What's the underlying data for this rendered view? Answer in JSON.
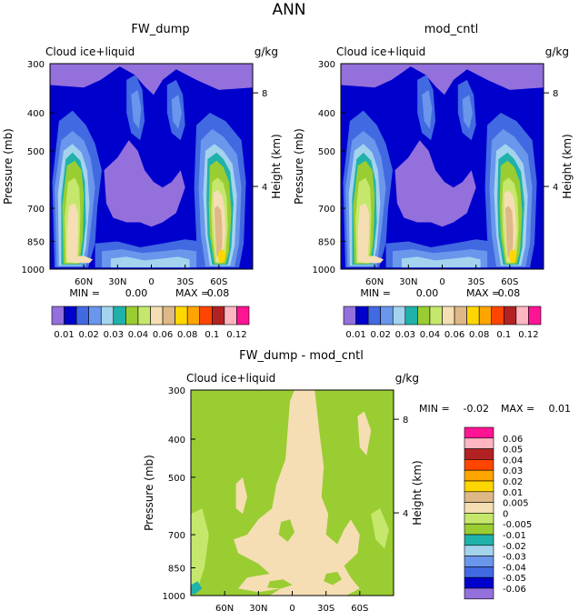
{
  "figure_title": "ANN",
  "chart_data": [
    {
      "type": "contour",
      "title": "FW_dump",
      "field_label": "Cloud ice+liquid",
      "units": "g/kg",
      "ylabel": "Pressure (mb)",
      "y2label": "Height (km)",
      "pressure_ticks": [
        "300",
        "400",
        "500",
        "700",
        "850",
        "1000"
      ],
      "height_ticks": [
        "8",
        "4"
      ],
      "lat_ticks": [
        "60N",
        "30N",
        "0",
        "30S",
        "60S"
      ],
      "min_label": "MIN =",
      "min_value": "0.00",
      "max_label": "MAX =",
      "max_value": "0.08",
      "levels": [
        0.01,
        0.02,
        0.03,
        0.04,
        0.06,
        0.08,
        0.1,
        0.12
      ],
      "colorbar_labels": [
        "0.01",
        "0.02",
        "0.03",
        "0.04",
        "0.06",
        "0.08",
        "0.1",
        "0.12"
      ]
    },
    {
      "type": "contour",
      "title": "mod_cntl",
      "field_label": "Cloud ice+liquid",
      "units": "g/kg",
      "ylabel": "Pressure (mb)",
      "y2label": "Height (km)",
      "pressure_ticks": [
        "300",
        "400",
        "500",
        "700",
        "850",
        "1000"
      ],
      "height_ticks": [
        "8",
        "4"
      ],
      "lat_ticks": [
        "60N",
        "30N",
        "0",
        "30S",
        "60S"
      ],
      "min_label": "MIN =",
      "min_value": "0.00",
      "max_label": "MAX =",
      "max_value": "0.08",
      "levels": [
        0.01,
        0.02,
        0.03,
        0.04,
        0.06,
        0.08,
        0.1,
        0.12
      ],
      "colorbar_labels": [
        "0.01",
        "0.02",
        "0.03",
        "0.04",
        "0.06",
        "0.08",
        "0.1",
        "0.12"
      ]
    },
    {
      "type": "contour",
      "title": "FW_dump - mod_cntl",
      "field_label": "Cloud ice+liquid",
      "units": "g/kg",
      "ylabel": "Pressure (mb)",
      "y2label": "Height (km)",
      "pressure_ticks": [
        "300",
        "400",
        "500",
        "700",
        "850",
        "1000"
      ],
      "height_ticks": [
        "8",
        "4"
      ],
      "lat_ticks": [
        "60N",
        "30N",
        "0",
        "30S",
        "60S"
      ],
      "min_label": "MIN =",
      "min_value": "-0.02",
      "max_label": "MAX =",
      "max_value": "0.01",
      "levels": [
        -0.06,
        -0.05,
        -0.04,
        -0.03,
        -0.02,
        -0.01,
        -0.005,
        0,
        0.005,
        0.01,
        0.02,
        0.03,
        0.04,
        0.05,
        0.06
      ],
      "colorbar_labels": [
        "0.06",
        "0.05",
        "0.04",
        "0.03",
        "0.02",
        "0.01",
        "0.005",
        "0",
        "-0.005",
        "-0.01",
        "-0.02",
        "-0.03",
        "-0.04",
        "-0.05",
        "-0.06"
      ]
    }
  ],
  "colors": {
    "abs_scale": [
      "#9370db",
      "#0000cd",
      "#4169e1",
      "#6a96ec",
      "#a4d3ee",
      "#20b2aa",
      "#9acd32",
      "#c5e86c",
      "#f5deb3",
      "#deb887",
      "#ffd700",
      "#ffa500",
      "#ff4500",
      "#b22222",
      "#ffb6c1",
      "#ff1493"
    ],
    "diff_scale": [
      "#9370db",
      "#0000cd",
      "#4169e1",
      "#6a96ec",
      "#a4d3ee",
      "#20b2aa",
      "#9acd32",
      "#c5e86c",
      "#f5deb3",
      "#deb887",
      "#ffd700",
      "#ffa500",
      "#ff4500",
      "#b22222",
      "#ffb6c1",
      "#ff1493"
    ]
  }
}
